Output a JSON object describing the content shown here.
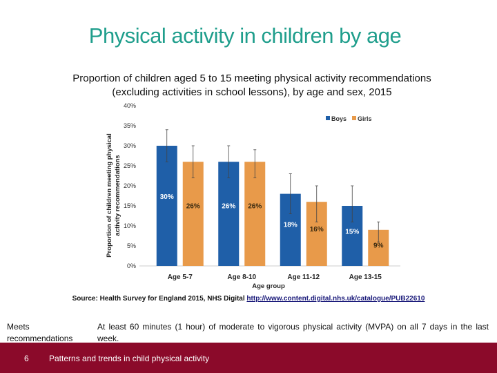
{
  "slide": {
    "title": "Physical activity in children by age",
    "subtitle_line1": "Proportion of children aged 5 to 15 meeting physical activity recommendations",
    "subtitle_line2": "(excluding activities in school lessons), by age and sex, 2015",
    "source_prefix": "Source: Health Survey for England 2015, NHS Digital ",
    "source_link": "http://www.content.digital.nhs.uk/catalogue/PUB22610",
    "definition_term": "Meets recommendations",
    "definition_text": "At least 60 minutes (1 hour) of moderate to vigorous physical activity (MVPA) on all 7 days in the last week.",
    "page_number": "6",
    "footer_text": "Patterns and trends in child physical activity"
  },
  "colors": {
    "title": "#1f9e8c",
    "boys": "#1f5fa8",
    "girls": "#e89a4a",
    "footer": "#8b0a2a"
  },
  "chart_data": {
    "type": "bar",
    "categories": [
      "Age 5-7",
      "Age 8-10",
      "Age 11-12",
      "Age 13-15"
    ],
    "series": [
      {
        "name": "Boys",
        "values": [
          30,
          26,
          18,
          15
        ],
        "labels": [
          "30%",
          "26%",
          "18%",
          "15%"
        ],
        "error_low": [
          26,
          22,
          13,
          11
        ],
        "error_high": [
          34,
          30,
          23,
          20
        ]
      },
      {
        "name": "Girls",
        "values": [
          26,
          26,
          16,
          9
        ],
        "labels": [
          "26%",
          "26%",
          "16%",
          "9%"
        ],
        "error_low": [
          22,
          22,
          11,
          6
        ],
        "error_high": [
          30,
          29,
          20,
          11
        ]
      }
    ],
    "xlabel": "Age group",
    "ylabel_line1": "Proportion of children meeting physical",
    "ylabel_line2": "activity recommendations",
    "ylim": [
      0,
      40
    ],
    "yticks": [
      "0%",
      "5%",
      "10%",
      "15%",
      "20%",
      "25%",
      "30%",
      "35%",
      "40%"
    ],
    "legend_position": "top-right",
    "grid": false
  }
}
